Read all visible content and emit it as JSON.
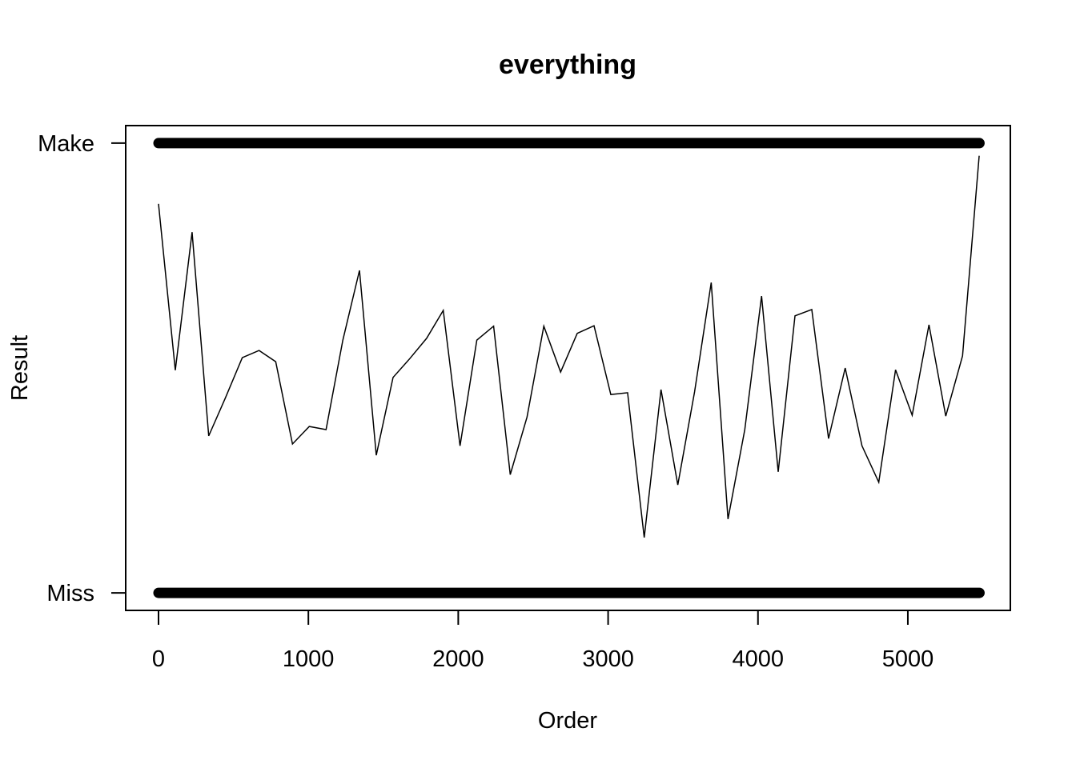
{
  "chart_data": {
    "type": "line",
    "title": "everything",
    "xlabel": "Order",
    "ylabel": "Result",
    "xlim": [
      -219,
      5684
    ],
    "ylim": [
      -0.039,
      1.039
    ],
    "xticks": [
      0,
      1000,
      2000,
      3000,
      4000,
      5000
    ],
    "yticks": [
      {
        "value": 0,
        "label": "Miss"
      },
      {
        "value": 1,
        "label": "Make"
      }
    ],
    "series": [
      {
        "style": "points",
        "color": "#000000",
        "x": [
          0,
          5478
        ],
        "values": [
          1,
          1
        ]
      },
      {
        "style": "points",
        "color": "#000000",
        "x": [
          0,
          5478
        ],
        "values": [
          0,
          0
        ]
      },
      {
        "style": "line",
        "color": "#000000",
        "x": [
          0,
          112,
          224,
          335,
          447,
          559,
          671,
          782,
          894,
          1006,
          1118,
          1230,
          1341,
          1453,
          1565,
          1677,
          1789,
          1900,
          2012,
          2124,
          2236,
          2347,
          2459,
          2571,
          2683,
          2794,
          2906,
          3018,
          3130,
          3241,
          3353,
          3465,
          3577,
          3688,
          3800,
          3912,
          4024,
          4135,
          4247,
          4359,
          4471,
          4582,
          4694,
          4806,
          4918,
          5029,
          5141,
          5253,
          5365,
          5476
        ],
        "values": [
          0.865,
          0.495,
          0.802,
          0.349,
          0.434,
          0.523,
          0.539,
          0.514,
          0.331,
          0.37,
          0.363,
          0.562,
          0.717,
          0.306,
          0.479,
          0.521,
          0.566,
          0.628,
          0.327,
          0.562,
          0.593,
          0.263,
          0.391,
          0.593,
          0.491,
          0.577,
          0.594,
          0.441,
          0.445,
          0.123,
          0.452,
          0.24,
          0.447,
          0.69,
          0.164,
          0.363,
          0.66,
          0.269,
          0.616,
          0.63,
          0.343,
          0.5,
          0.327,
          0.246,
          0.496,
          0.395,
          0.596,
          0.393,
          0.527,
          0.972
        ]
      }
    ]
  }
}
